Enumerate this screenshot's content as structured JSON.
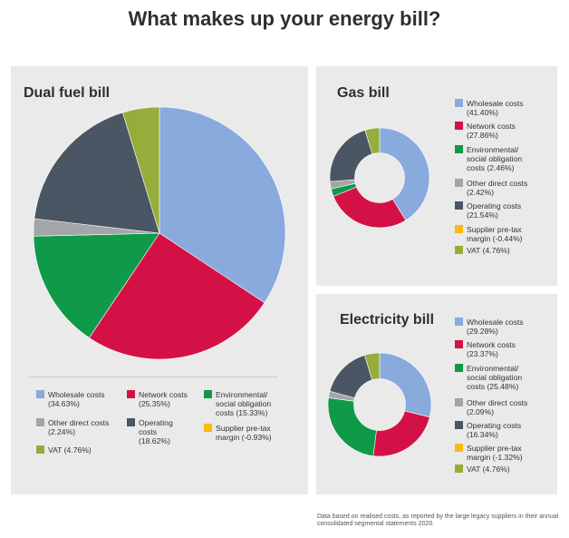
{
  "title": "What makes up your energy bill?",
  "footnote": "Data based on realised costs, as reported by the large legacy suppliers in their annual consolidated segmental statements 2020.",
  "colors": {
    "wholesale": "#88aadd",
    "network": "#d41146",
    "environmental": "#0e9a48",
    "other_direct": "#a3a5a8",
    "operating": "#4a5664",
    "supplier": "#fcb813",
    "vat": "#95ad3a"
  },
  "chart_data": [
    {
      "type": "pie",
      "title": "Dual fuel bill",
      "slices": [
        {
          "key": "wholesale",
          "label": "Wholesale costs\n(34.63%)",
          "value": 34.63
        },
        {
          "key": "network",
          "label": "Network costs\n(25.35%)",
          "value": 25.35
        },
        {
          "key": "environmental",
          "label": "Environmental/\nsocial obligation\ncosts (15.33%)",
          "value": 15.33
        },
        {
          "key": "other_direct",
          "label": "Other direct costs\n(2.24%)",
          "value": 2.24
        },
        {
          "key": "operating",
          "label": "Operating\ncosts\n(18.62%)",
          "value": 18.62
        },
        {
          "key": "supplier",
          "label": "Supplier pre-tax\nmargin (-0.93%)",
          "value": -0.93
        },
        {
          "key": "vat",
          "label": "VAT (4.76%)",
          "value": 4.76
        }
      ]
    },
    {
      "type": "pie",
      "title": "Gas bill",
      "donut": true,
      "slices": [
        {
          "key": "wholesale",
          "label": "Wholesale costs\n(41.40%)",
          "value": 41.4
        },
        {
          "key": "network",
          "label": "Network costs\n(27.86%)",
          "value": 27.86
        },
        {
          "key": "environmental",
          "label": "Environmental/\nsocial obligation\ncosts (2.46%)",
          "value": 2.46
        },
        {
          "key": "other_direct",
          "label": "Other direct costs\n(2.42%)",
          "value": 2.42
        },
        {
          "key": "operating",
          "label": "Operating costs\n(21.54%)",
          "value": 21.54
        },
        {
          "key": "supplier",
          "label": "Supplier pre-tax\nmargin (-0.44%)",
          "value": -0.44
        },
        {
          "key": "vat",
          "label": "VAT (4.76%)",
          "value": 4.76
        }
      ]
    },
    {
      "type": "pie",
      "title": "Electricity bill",
      "donut": true,
      "slices": [
        {
          "key": "wholesale",
          "label": "Wholesale costs\n(29.28%)",
          "value": 29.28
        },
        {
          "key": "network",
          "label": "Network costs\n(23.37%)",
          "value": 23.37
        },
        {
          "key": "environmental",
          "label": "Environmental/\nsocial obligation\ncosts (25.48%)",
          "value": 25.48
        },
        {
          "key": "other_direct",
          "label": "Other direct costs\n(2.09%)",
          "value": 2.09
        },
        {
          "key": "operating",
          "label": "Operating costs\n(16.34%)",
          "value": 16.34
        },
        {
          "key": "supplier",
          "label": "Supplier pre-tax\nmargin (-1.32%)",
          "value": -1.32
        },
        {
          "key": "vat",
          "label": "VAT (4.76%)",
          "value": 4.76
        }
      ]
    }
  ]
}
